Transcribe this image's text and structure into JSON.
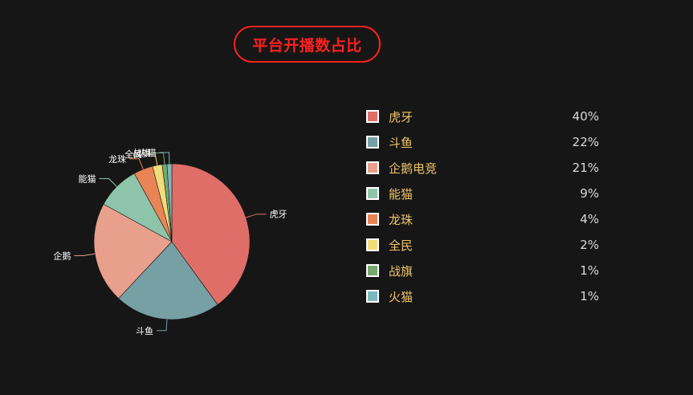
{
  "title": "平台开播数占比",
  "colors": {
    "background": "#161616",
    "title_accent": "#ff2020",
    "legend_label": "#f2c56b",
    "legend_value": "#d9d9d9"
  },
  "chart_data": {
    "type": "pie",
    "title": "平台开播数占比",
    "slices": [
      {
        "label": "虎牙",
        "legend_label": "虎牙",
        "value": 40,
        "display": "40%",
        "color": "#df6e69"
      },
      {
        "label": "斗鱼",
        "legend_label": "斗鱼",
        "value": 22,
        "display": "22%",
        "color": "#77a0a5"
      },
      {
        "label": "企鹅",
        "legend_label": "企鹅电竞",
        "value": 21,
        "display": "21%",
        "color": "#e8a08d"
      },
      {
        "label": "能猫",
        "legend_label": "能猫",
        "value": 9,
        "display": "9%",
        "color": "#8ec4aa"
      },
      {
        "label": "龙珠",
        "legend_label": "龙珠",
        "value": 4,
        "display": "4%",
        "color": "#e98457"
      },
      {
        "label": "全民",
        "legend_label": "全民",
        "value": 2,
        "display": "2%",
        "color": "#f1dc7a"
      },
      {
        "label": "战旗",
        "legend_label": "战旗",
        "value": 1,
        "display": "1%",
        "color": "#77a66f"
      },
      {
        "label": "火猫",
        "legend_label": "火猫",
        "value": 1,
        "display": "1%",
        "color": "#7ab8bc"
      }
    ],
    "legend_placement": "right"
  }
}
